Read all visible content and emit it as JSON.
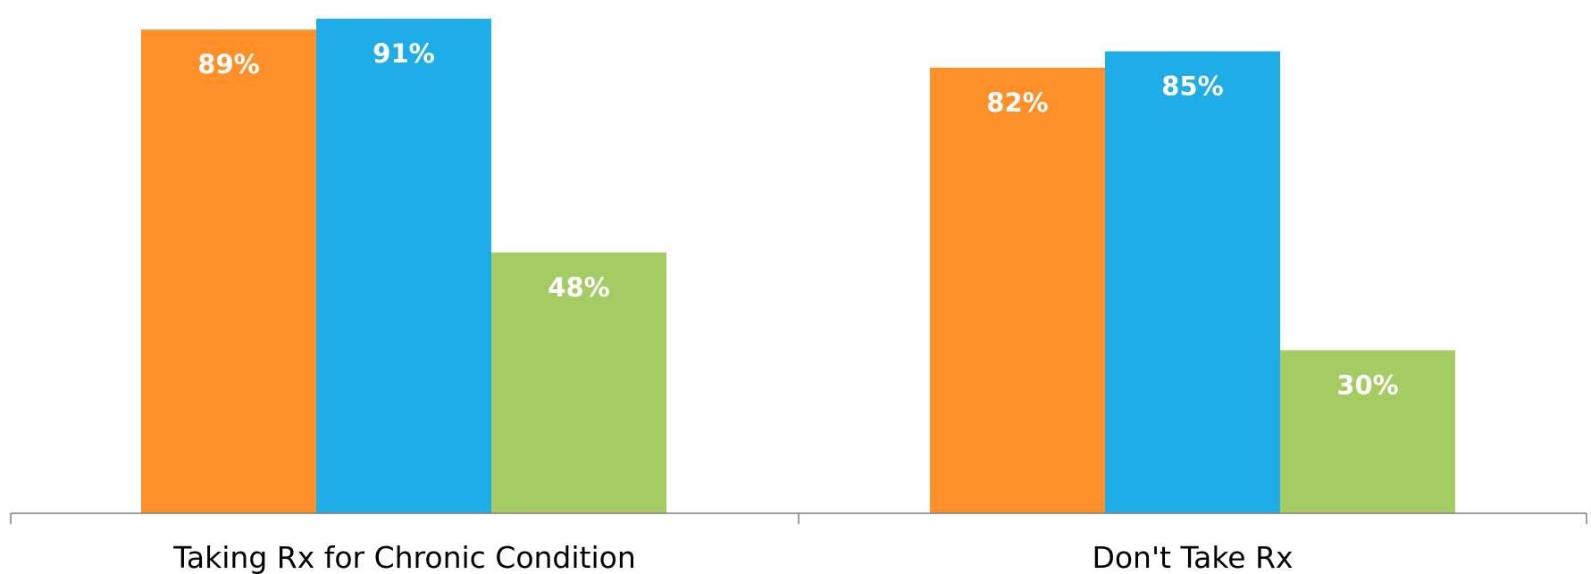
{
  "chart_data": {
    "type": "bar",
    "categories": [
      "Taking Rx for Chronic Condition",
      "Don't Take Rx"
    ],
    "series": [
      {
        "values": [
          89,
          82
        ],
        "labels": [
          "89%",
          "82%"
        ],
        "color": "#FF9029"
      },
      {
        "values": [
          91,
          85
        ],
        "labels": [
          "91%",
          "85%"
        ],
        "color": "#1FADE8"
      },
      {
        "values": [
          48,
          30
        ],
        "labels": [
          "48%",
          "30%"
        ],
        "color": "#A5CC63"
      }
    ],
    "ylim": [
      0,
      92.8
    ],
    "grid": false,
    "legend": "none"
  }
}
